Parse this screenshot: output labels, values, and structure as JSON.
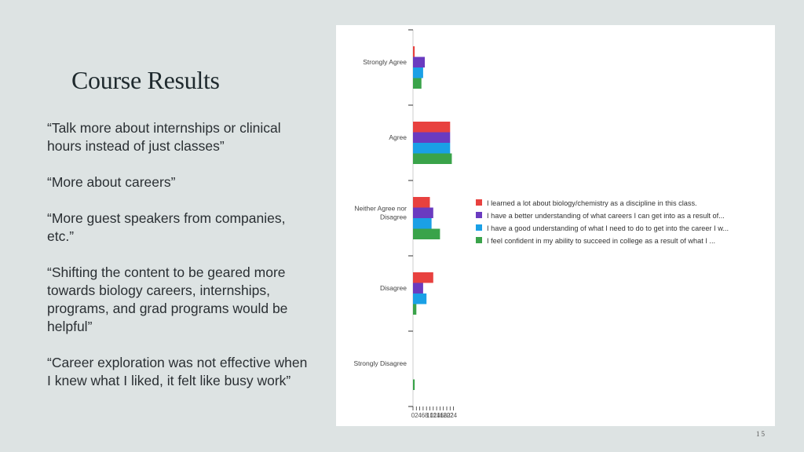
{
  "slide": {
    "title": "Course Results",
    "page_number": "15",
    "quotes": [
      "“Talk more about internships or clinical hours instead of just classes”",
      "“More about careers”",
      "“More guest speakers from companies, etc.”",
      "“Shifting the content to be geared more towards biology careers, internships, programs, and grad programs would be helpful”",
      "“Career exploration was not effective when I knew what I liked, it felt like busy work”"
    ]
  },
  "chart_data": {
    "type": "bar",
    "orientation": "horizontal",
    "categories": [
      "Strongly Agree",
      "Agree",
      "Neither Agree nor Disagree",
      "Disagree",
      "Strongly Disagree"
    ],
    "series": [
      {
        "name": "I learned a lot about biology/chemistry as a discipline in this class.",
        "color": "#e8413f",
        "values": [
          1,
          22,
          10,
          12,
          0
        ]
      },
      {
        "name": "I have a better understanding of what careers I can get into as a result of...",
        "color": "#6a3bc0",
        "values": [
          7,
          22,
          12,
          6,
          0
        ]
      },
      {
        "name": "I have a good understanding of what I need to do to get into the career I w...",
        "color": "#1aa0e6",
        "values": [
          6,
          22,
          11,
          8,
          0
        ]
      },
      {
        "name": "I feel confident in my ability to succeed in college as a result of what I ...",
        "color": "#3aa34a",
        "values": [
          5,
          23,
          16,
          2,
          1
        ]
      }
    ],
    "xticks": [
      "0",
      "2",
      "4",
      "6",
      "8",
      "10",
      "12",
      "14",
      "16",
      "18",
      "20",
      "22",
      "24"
    ],
    "xlim": [
      0,
      24
    ],
    "legend_position": "right",
    "grid": false
  }
}
